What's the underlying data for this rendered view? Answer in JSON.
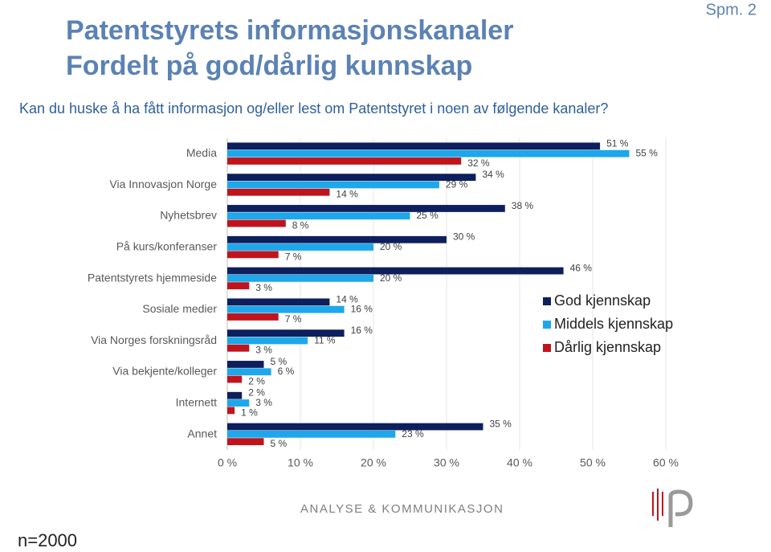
{
  "header": {
    "title_line1": "Patentstyrets informasjonskanaler",
    "title_line2": "Fordelt på god/dårlig kunnskap",
    "question_no": "Spm. 2",
    "question": "Kan du huske å ha fått informasjon og/eller lest om Patentstyret i noen av følgende kanaler?"
  },
  "footer": {
    "brand": "ANALYSE & KOMMUNIKASJON",
    "sample": "n=2000"
  },
  "chart_data": {
    "type": "hbar",
    "categories": [
      "Media",
      "Via Innovasjon Norge",
      "Nyhetsbrev",
      "På kurs/konferanser",
      "Patentstyrets hjemmeside",
      "Sosiale medier",
      "Via Norges forskningsråd",
      "Via bekjente/kolleger",
      "Internett",
      "Annet"
    ],
    "series": [
      {
        "name": "God kjennskap",
        "color": "#0d1f5c",
        "values": [
          51,
          34,
          38,
          30,
          46,
          14,
          16,
          5,
          2,
          35
        ],
        "value_labels": [
          "51 %",
          "34 %",
          "38 %",
          "30 %",
          "46 %",
          "14 %",
          "16 %",
          "5 %",
          "2 %",
          "35 %"
        ]
      },
      {
        "name": "Middels kjennskap",
        "color": "#1ea7ea",
        "values": [
          55,
          29,
          25,
          20,
          20,
          16,
          11,
          6,
          3,
          23
        ],
        "value_labels": [
          "55 %",
          "29 %",
          "25 %",
          "20 %",
          "20 %",
          "16 %",
          "11 %",
          "6 %",
          "3 %",
          "23 %"
        ]
      },
      {
        "name": "Dårlig kjennskap",
        "color": "#c0141c",
        "values": [
          32,
          14,
          8,
          7,
          3,
          7,
          3,
          2,
          1,
          5
        ],
        "value_labels": [
          "32 %",
          "14 %",
          "8 %",
          "7 %",
          "3 %",
          "7 %",
          "3 %",
          "2 %",
          "1 %",
          "5 %"
        ]
      }
    ],
    "xlim": [
      0,
      60
    ],
    "xticks": [
      {
        "value": 0,
        "label": "0 %"
      },
      {
        "value": 10,
        "label": "10 %"
      },
      {
        "value": 20,
        "label": "20 %"
      },
      {
        "value": 30,
        "label": "30 %"
      },
      {
        "value": 40,
        "label": "40 %"
      },
      {
        "value": 50,
        "label": "50 %"
      },
      {
        "value": 60,
        "label": "60 %"
      }
    ],
    "grid": true,
    "legend": "right"
  }
}
